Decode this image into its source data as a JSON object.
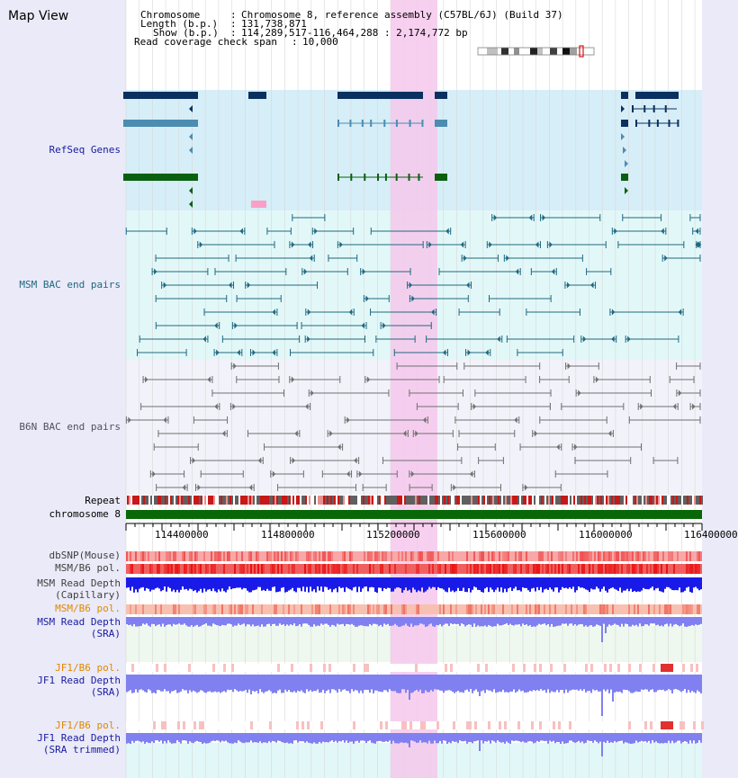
{
  "page": {
    "title": "Map View",
    "info": {
      "chromosome_label": "Chromosome",
      "chromosome_value": "Chromosome 8, reference assembly (C57BL/6J) (Build 37)",
      "length_label": "Length (b.p.)",
      "length_value": "131,738,871",
      "show_label": "Show (b.p.)",
      "show_value": "114,289,517-116,464,288 : 2,174,772 bp",
      "span_label": "Read coverage check span",
      "span_value": "10,000"
    }
  },
  "tracks": {
    "refseq": "RefSeq Genes",
    "msm_bac": "MSM BAC end pairs",
    "b6n_bac": "B6N BAC end pairs",
    "repeat": "Repeat",
    "chromosome": "chromosome 8",
    "dbsnp": "dbSNP(Mouse)",
    "msm_b6_pol": "MSM/B6 pol.",
    "msm_depth_cap_1": "MSM Read Depth",
    "msm_depth_cap_2": "(Capillary)",
    "msm_b6_pol_2": "MSM/B6 pol.",
    "msm_depth_sra_1": "MSM Read Depth",
    "msm_depth_sra_2": "(SRA)",
    "jf1_b6_pol": "JF1/B6 pol.",
    "jf1_depth_sra_1": "JF1 Read Depth",
    "jf1_depth_sra_2": "(SRA)",
    "jf1_b6_pol_2": "JF1/B6 pol.",
    "jf1_depth_trim_1": "JF1 Read Depth",
    "jf1_depth_trim_2": "(SRA trimmed)"
  },
  "axis": {
    "ticks": [
      "114400000",
      "114800000",
      "115200000",
      "115600000",
      "116000000",
      "116400000"
    ]
  },
  "colors": {
    "refseq_bg": "#d6eef8",
    "bac_bg": "#e2f8f8",
    "b6n_bg": "#f0f0f8",
    "highlight": "#f8c8ec",
    "refseq_navy": "#0a3060",
    "refseq_steel": "#4c8cb0",
    "refseq_green": "#0a6010",
    "msm_bac": "#206880",
    "b6n_bac": "#707070",
    "chromosome_bar": "#086808",
    "msm_depth": "#1a1ae8",
    "sra_depth": "#8080f0",
    "label_dark": "#000000",
    "label_blue": "#1a1aa0",
    "label_orange": "#e08800"
  }
}
